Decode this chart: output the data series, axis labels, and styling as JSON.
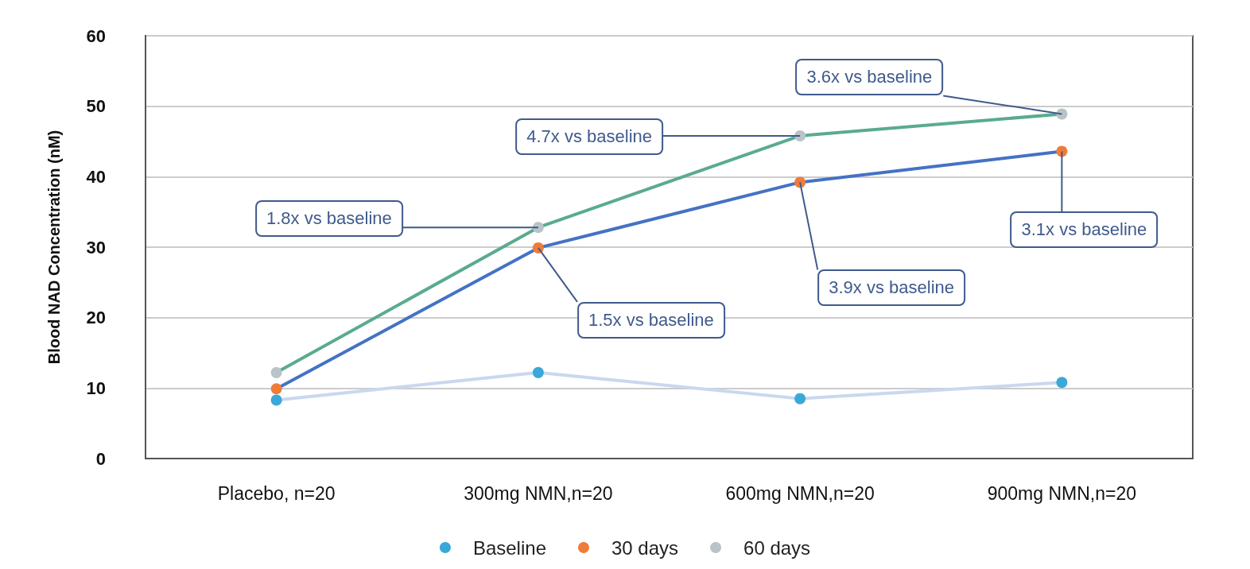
{
  "chart_data": {
    "type": "line",
    "ylabel": "Blood NAD Concentration (nM)",
    "categories": [
      "Placebo, n=20",
      "300mg NMN,n=20",
      "600mg NMN,n=20",
      "900mg NMN,n=20"
    ],
    "series": [
      {
        "name": "Baseline",
        "color": "#c9d8ee",
        "colors": [
          "#3aa8d8",
          "#3aa8d8",
          "#3aa8d8",
          "#3aa8d8"
        ],
        "values": [
          8.3,
          12.2,
          8.5,
          10.8
        ]
      },
      {
        "name": "30 days",
        "color": "#4472c4",
        "colors": [
          "#f07c3a",
          "#f07c3a",
          "#f07c3a",
          "#f07c3a"
        ],
        "values": [
          9.9,
          29.9,
          39.2,
          43.6
        ]
      },
      {
        "name": "60 days",
        "color": "#5aab8e",
        "colors": [
          "#b8c4c8",
          "#b8c4c8",
          "#b8c4c8",
          "#b8c4c8"
        ],
        "values": [
          12.2,
          32.8,
          45.8,
          48.9
        ]
      }
    ],
    "ylim": [
      0,
      60
    ],
    "yticks": [
      0,
      10,
      20,
      30,
      40,
      50,
      60
    ],
    "grid": "y",
    "legend": "bottom",
    "marker": "circle",
    "line_style": "solid",
    "annotations": [
      {
        "text": "1.8x vs baseline",
        "x": "300mg NMN,n=20",
        "y": 32.8
      },
      {
        "text": "1.5x vs baseline",
        "x": "300mg NMN,n=20",
        "y": 29.9
      },
      {
        "text": "4.7x vs baseline",
        "x": "600mg NMN,n=20",
        "y": 45.8
      },
      {
        "text": "3.9x vs baseline",
        "x": "600mg NMN,n=20",
        "y": 39.2
      },
      {
        "text": "3.6x vs baseline",
        "x": "900mg NMN,n=20",
        "y": 48.9
      },
      {
        "text": "3.1x vs baseline",
        "x": "900mg NMN,n=20",
        "y": 43.6
      }
    ]
  }
}
